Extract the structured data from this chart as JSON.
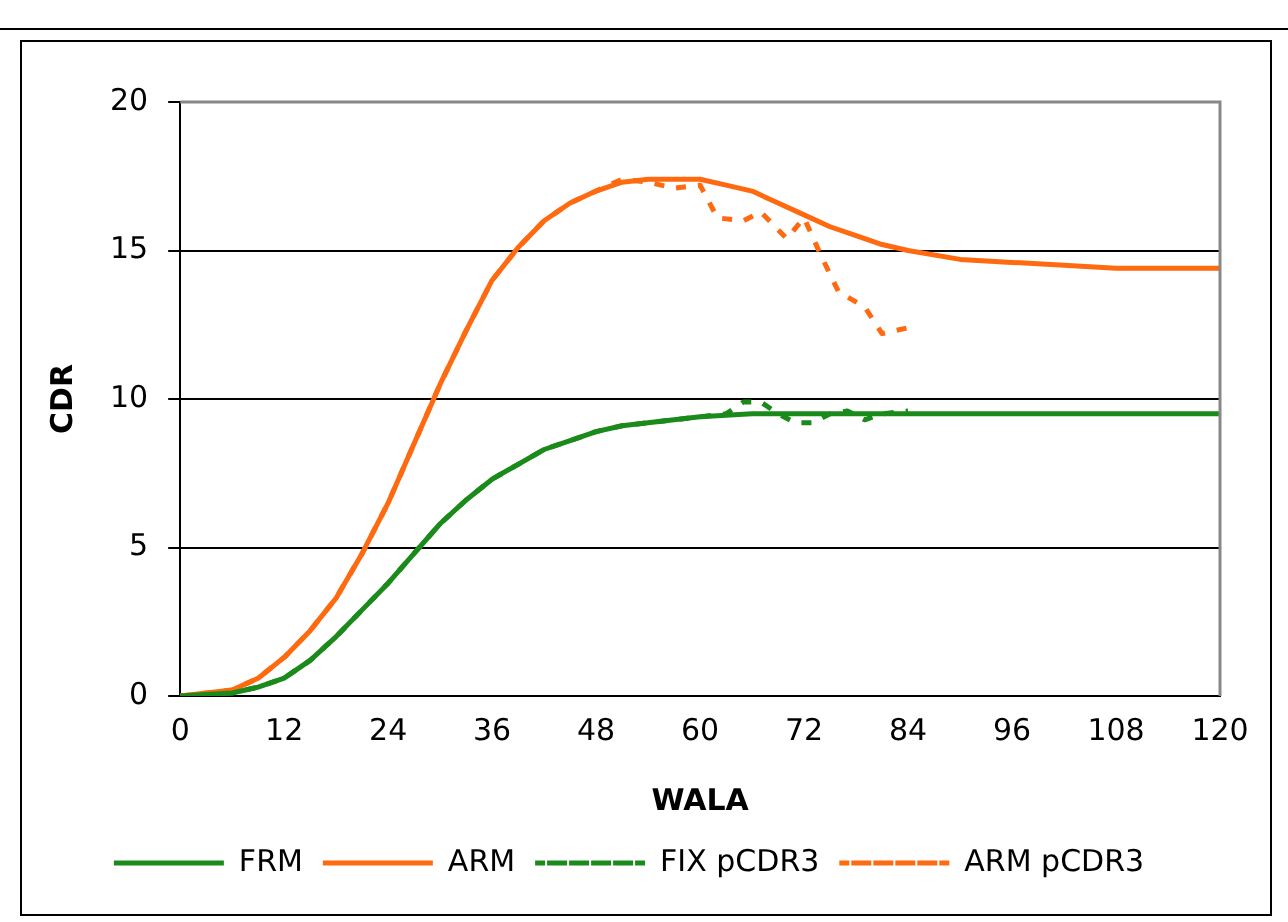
{
  "chart_data": {
    "type": "line",
    "xlabel": "WALA",
    "ylabel": "CDR",
    "xlim": [
      0,
      120
    ],
    "xticks": [
      0,
      12,
      24,
      36,
      48,
      60,
      72,
      84,
      96,
      108,
      120
    ],
    "ylim": [
      0,
      20
    ],
    "yticks": [
      0,
      5,
      10,
      15,
      20
    ],
    "grid": "y",
    "legend": "bottom",
    "marker": "none",
    "series": [
      {
        "name": "FRM",
        "color": "#1a8a1a",
        "line_style": "solid",
        "x": [
          0,
          6,
          9,
          12,
          15,
          18,
          21,
          24,
          27,
          30,
          33,
          36,
          39,
          42,
          45,
          48,
          51,
          54,
          57,
          60,
          63,
          66,
          72,
          84,
          96,
          108,
          120
        ],
        "values": [
          0,
          0.1,
          0.3,
          0.6,
          1.2,
          2,
          2.9,
          3.8,
          4.8,
          5.8,
          6.6,
          7.3,
          7.8,
          8.3,
          8.6,
          8.9,
          9.1,
          9.2,
          9.3,
          9.4,
          9.45,
          9.5,
          9.5,
          9.5,
          9.5,
          9.5,
          9.5
        ]
      },
      {
        "name": "ARM",
        "color": "#ff6a10",
        "line_style": "solid",
        "x": [
          0,
          6,
          9,
          12,
          15,
          18,
          21,
          24,
          27,
          30,
          33,
          36,
          39,
          42,
          45,
          48,
          51,
          54,
          57,
          60,
          63,
          66,
          69,
          72,
          75,
          78,
          81,
          84,
          90,
          96,
          102,
          108,
          114,
          120
        ],
        "values": [
          0,
          0.2,
          0.6,
          1.3,
          2.2,
          3.3,
          4.8,
          6.5,
          8.5,
          10.5,
          12.3,
          14,
          15.1,
          16,
          16.6,
          17,
          17.3,
          17.4,
          17.4,
          17.4,
          17.2,
          17,
          16.6,
          16.2,
          15.8,
          15.5,
          15.2,
          15,
          14.7,
          14.6,
          14.5,
          14.4,
          14.4,
          14.4
        ]
      },
      {
        "name": "FIX pCDR3",
        "color": "#1a8a1a",
        "line_style": "dashed",
        "x": [
          0,
          6,
          9,
          12,
          15,
          18,
          21,
          24,
          27,
          30,
          33,
          36,
          39,
          42,
          45,
          48,
          51,
          54,
          57,
          60,
          63,
          65,
          67,
          69,
          71,
          73,
          75,
          77,
          79,
          81,
          84
        ],
        "values": [
          0,
          0.1,
          0.3,
          0.6,
          1.2,
          2,
          2.9,
          3.8,
          4.8,
          5.8,
          6.6,
          7.3,
          7.8,
          8.3,
          8.6,
          8.9,
          9.1,
          9.2,
          9.3,
          9.4,
          9.5,
          9.9,
          9.9,
          9.5,
          9.2,
          9.2,
          9.5,
          9.6,
          9.3,
          9.5,
          9.6
        ]
      },
      {
        "name": "ARM pCDR3",
        "color": "#ff6a10",
        "line_style": "dashed",
        "x": [
          0,
          6,
          9,
          12,
          15,
          18,
          21,
          24,
          27,
          30,
          33,
          36,
          39,
          42,
          45,
          48,
          51,
          54,
          57,
          60,
          62,
          65,
          67,
          70,
          72,
          74,
          76,
          79,
          81,
          84
        ],
        "values": [
          0,
          0.2,
          0.6,
          1.3,
          2.2,
          3.3,
          4.8,
          6.5,
          8.5,
          10.5,
          12.3,
          14,
          15.1,
          16,
          16.6,
          17,
          17.4,
          17.3,
          17.1,
          17.2,
          16.1,
          16,
          16.3,
          15.4,
          16.1,
          14.8,
          13.6,
          13.1,
          12.2,
          12.4
        ]
      }
    ]
  }
}
